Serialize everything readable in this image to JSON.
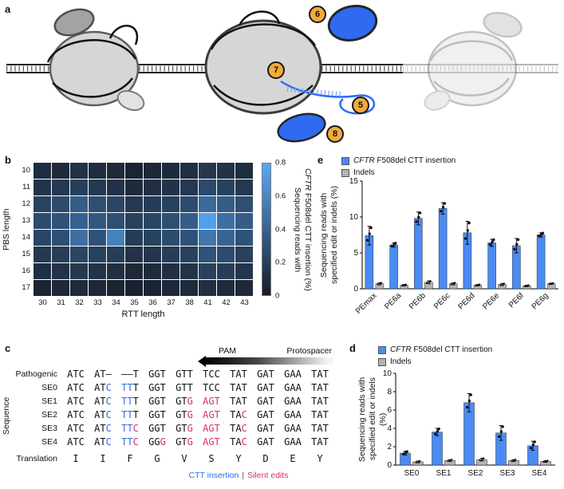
{
  "figure_labels": {
    "a": "a",
    "b": "b",
    "c": "c",
    "d": "d",
    "e": "e"
  },
  "panel_a": {
    "badges": {
      "b5": "5",
      "b6": "6",
      "b7": "7",
      "b8": "8"
    }
  },
  "colors": {
    "accent_blue": "#2e6bf0",
    "bar_blue": "#4b8bf4",
    "bar_gray": "#b3b3b3",
    "badge_yellow": "#f3a93c",
    "silent_edit_pink": "#d5306b",
    "heatmap_low": "#171b25",
    "heatmap_high": "#58aafa"
  },
  "chart_data": [
    {
      "type": "heatmap",
      "x_label": "RTT length",
      "y_label": "PBS length",
      "x_categories": [
        "30",
        "31",
        "32",
        "33",
        "34",
        "35",
        "36",
        "37",
        "38",
        "41",
        "42",
        "43"
      ],
      "y_categories": [
        "10",
        "11",
        "12",
        "13",
        "14",
        "15",
        "16",
        "17"
      ],
      "values": [
        [
          0.1,
          0.08,
          0.13,
          0.1,
          0.08,
          0.05,
          0.07,
          0.09,
          0.11,
          0.16,
          0.13,
          0.1
        ],
        [
          0.14,
          0.16,
          0.2,
          0.16,
          0.13,
          0.09,
          0.11,
          0.13,
          0.16,
          0.26,
          0.21,
          0.16
        ],
        [
          0.22,
          0.27,
          0.37,
          0.29,
          0.24,
          0.17,
          0.19,
          0.21,
          0.27,
          0.44,
          0.37,
          0.29
        ],
        [
          0.27,
          0.31,
          0.39,
          0.34,
          0.29,
          0.21,
          0.24,
          0.29,
          0.37,
          0.74,
          0.47,
          0.37
        ],
        [
          0.24,
          0.29,
          0.47,
          0.31,
          0.57,
          0.19,
          0.21,
          0.27,
          0.31,
          0.51,
          0.41,
          0.31
        ],
        [
          0.17,
          0.19,
          0.24,
          0.21,
          0.19,
          0.13,
          0.15,
          0.19,
          0.21,
          0.31,
          0.27,
          0.21
        ],
        [
          0.11,
          0.13,
          0.17,
          0.14,
          0.11,
          0.07,
          0.09,
          0.11,
          0.14,
          0.21,
          0.19,
          0.15
        ],
        [
          0.05,
          0.07,
          0.09,
          0.07,
          0.05,
          0.04,
          0.05,
          0.07,
          0.09,
          0.11,
          0.09,
          0.07
        ]
      ],
      "vmin": 0,
      "vmax": 0.8,
      "colorbar_ticks": [
        "0.8",
        "0.6",
        "0.4",
        "0.2",
        "0"
      ],
      "colorbar_label_line1": "Sequencing reads with",
      "colorbar_label_italic": "CFTR",
      "colorbar_label_rest": " F508del CTT insertion (%)"
    },
    {
      "type": "bar",
      "categories": [
        "PEmax",
        "PE6a",
        "PE6b",
        "PE6c",
        "PE6d",
        "PE6e",
        "PE6f",
        "PE6g"
      ],
      "series": [
        {
          "name": "CFTR F508del CTT insertion",
          "color": "#4b8bf4",
          "values": [
            7.4,
            6.1,
            9.8,
            11.2,
            7.8,
            6.4,
            6.0,
            7.5
          ],
          "errors": [
            1.3,
            0.3,
            0.9,
            0.8,
            1.6,
            0.5,
            1.0,
            0.3
          ]
        },
        {
          "name": "Indels",
          "color": "#b3b3b3",
          "values": [
            0.7,
            0.5,
            0.9,
            0.7,
            0.5,
            0.6,
            0.4,
            0.7
          ],
          "errors": [
            0.15,
            0.1,
            0.2,
            0.15,
            0.1,
            0.15,
            0.1,
            0.1
          ]
        }
      ],
      "ylim": [
        0,
        15
      ],
      "yticks": [
        0,
        5,
        10,
        15
      ],
      "ylabel_line1": "Sequencing reads with",
      "ylabel_line2": "specified edit or indels (%)",
      "legend": {
        "s1_italic": "CFTR",
        "s1_rest": " F508del CTT insertion",
        "s2": "Indels"
      }
    },
    {
      "type": "bar",
      "categories": [
        "SE0",
        "SE1",
        "SE2",
        "SE3",
        "SE4"
      ],
      "series": [
        {
          "name": "CFTR F508del CTT insertion",
          "color": "#4b8bf4",
          "values": [
            1.3,
            3.6,
            6.8,
            3.5,
            2.1
          ],
          "errors": [
            0.2,
            0.4,
            1.0,
            0.8,
            0.5
          ]
        },
        {
          "name": "Indels",
          "color": "#b3b3b3",
          "values": [
            0.35,
            0.5,
            0.6,
            0.5,
            0.4
          ],
          "errors": [
            0.1,
            0.1,
            0.15,
            0.1,
            0.1
          ]
        }
      ],
      "ylim": [
        0,
        10
      ],
      "yticks": [
        0,
        2,
        4,
        6,
        8,
        10
      ],
      "ylabel_line1": "Sequencing reads with",
      "ylabel_line2": "specified edit or indels (%)",
      "legend": {
        "s1_italic": "CFTR",
        "s1_rest": " F508del CTT insertion",
        "s2": "Indels"
      }
    }
  ],
  "sequence_panel": {
    "pam_label": "PAM",
    "protospacer_label": "Protospacer",
    "sequence_axis_label": "Sequence",
    "legend": {
      "ins": "CTT insertion",
      "sep": "|",
      "se": "Silent edits"
    },
    "rows": [
      {
        "label": "Pathogenic",
        "group": "top",
        "codons": [
          [
            [
              "ATC",
              "n"
            ]
          ],
          [
            [
              "AT–",
              "n"
            ]
          ],
          [
            [
              "––T",
              "n"
            ]
          ],
          [
            [
              "GGT",
              "n"
            ]
          ],
          [
            [
              "GTT",
              "n"
            ]
          ],
          [
            [
              "TCC",
              "n"
            ]
          ],
          [
            [
              "TAT",
              "n"
            ]
          ],
          [
            [
              "GAT",
              "n"
            ]
          ],
          [
            [
              "GAA",
              "n"
            ]
          ],
          [
            [
              "TAT",
              "n"
            ]
          ]
        ]
      },
      {
        "label": "SE0",
        "group": "seq",
        "codons": [
          [
            [
              "ATC",
              "n"
            ]
          ],
          [
            [
              "AT",
              "n"
            ],
            [
              "C",
              "ins"
            ]
          ],
          [
            [
              "TT",
              "ins"
            ],
            [
              "T",
              "n"
            ]
          ],
          [
            [
              "GGT",
              "n"
            ]
          ],
          [
            [
              "GTT",
              "n"
            ]
          ],
          [
            [
              "TCC",
              "n"
            ]
          ],
          [
            [
              "TAT",
              "n"
            ]
          ],
          [
            [
              "GAT",
              "n"
            ]
          ],
          [
            [
              "GAA",
              "n"
            ]
          ],
          [
            [
              "TAT",
              "n"
            ]
          ]
        ]
      },
      {
        "label": "SE1",
        "group": "seq",
        "codons": [
          [
            [
              "ATC",
              "n"
            ]
          ],
          [
            [
              "AT",
              "n"
            ],
            [
              "C",
              "ins"
            ]
          ],
          [
            [
              "TT",
              "ins"
            ],
            [
              "T",
              "n"
            ]
          ],
          [
            [
              "GGT",
              "n"
            ]
          ],
          [
            [
              "GT",
              "n"
            ],
            [
              "G",
              "se"
            ]
          ],
          [
            [
              "AGT",
              "se"
            ]
          ],
          [
            [
              "TAT",
              "n"
            ]
          ],
          [
            [
              "GAT",
              "n"
            ]
          ],
          [
            [
              "GAA",
              "n"
            ]
          ],
          [
            [
              "TAT",
              "n"
            ]
          ]
        ]
      },
      {
        "label": "SE2",
        "group": "seq",
        "codons": [
          [
            [
              "ATC",
              "n"
            ]
          ],
          [
            [
              "AT",
              "n"
            ],
            [
              "C",
              "ins"
            ]
          ],
          [
            [
              "TT",
              "ins"
            ],
            [
              "T",
              "n"
            ]
          ],
          [
            [
              "GGT",
              "n"
            ]
          ],
          [
            [
              "GT",
              "n"
            ],
            [
              "G",
              "se"
            ]
          ],
          [
            [
              "AGT",
              "se"
            ]
          ],
          [
            [
              "TA",
              "n"
            ],
            [
              "C",
              "se"
            ]
          ],
          [
            [
              "GAT",
              "n"
            ]
          ],
          [
            [
              "GAA",
              "n"
            ]
          ],
          [
            [
              "TAT",
              "n"
            ]
          ]
        ]
      },
      {
        "label": "SE3",
        "group": "seq",
        "codons": [
          [
            [
              "ATC",
              "n"
            ]
          ],
          [
            [
              "AT",
              "n"
            ],
            [
              "C",
              "ins"
            ]
          ],
          [
            [
              "TT",
              "ins"
            ],
            [
              "C",
              "se"
            ]
          ],
          [
            [
              "GGT",
              "n"
            ]
          ],
          [
            [
              "GT",
              "n"
            ],
            [
              "G",
              "se"
            ]
          ],
          [
            [
              "AGT",
              "se"
            ]
          ],
          [
            [
              "TA",
              "n"
            ],
            [
              "C",
              "se"
            ]
          ],
          [
            [
              "GAT",
              "n"
            ]
          ],
          [
            [
              "GAA",
              "n"
            ]
          ],
          [
            [
              "TAT",
              "n"
            ]
          ]
        ]
      },
      {
        "label": "SE4",
        "group": "seq",
        "codons": [
          [
            [
              "ATC",
              "n"
            ]
          ],
          [
            [
              "AT",
              "n"
            ],
            [
              "C",
              "ins"
            ]
          ],
          [
            [
              "TT",
              "ins"
            ],
            [
              "C",
              "se"
            ]
          ],
          [
            [
              "GG",
              "n"
            ],
            [
              "G",
              "se"
            ]
          ],
          [
            [
              "GT",
              "n"
            ],
            [
              "G",
              "se"
            ]
          ],
          [
            [
              "AGT",
              "se"
            ]
          ],
          [
            [
              "TA",
              "n"
            ],
            [
              "C",
              "se"
            ]
          ],
          [
            [
              "GAT",
              "n"
            ]
          ],
          [
            [
              "GAA",
              "n"
            ]
          ],
          [
            [
              "TAT",
              "n"
            ]
          ]
        ]
      },
      {
        "label": "Translation",
        "group": "bottom",
        "codons": [
          [
            [
              "I",
              "n"
            ]
          ],
          [
            [
              "I",
              "n"
            ]
          ],
          [
            [
              "F",
              "n"
            ]
          ],
          [
            [
              "G",
              "n"
            ]
          ],
          [
            [
              "V",
              "n"
            ]
          ],
          [
            [
              "S",
              "n"
            ]
          ],
          [
            [
              "Y",
              "n"
            ]
          ],
          [
            [
              "D",
              "n"
            ]
          ],
          [
            [
              "E",
              "n"
            ]
          ],
          [
            [
              "Y",
              "n"
            ]
          ]
        ]
      }
    ]
  }
}
